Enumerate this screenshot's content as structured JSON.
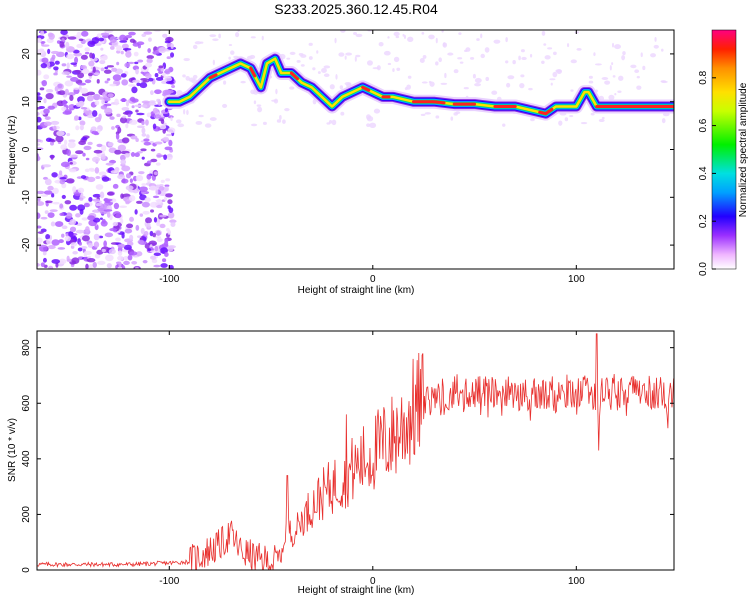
{
  "title": "S233.2025.360.12.45.R04",
  "chart_data": [
    {
      "type": "heatmap",
      "name": "spectrogram",
      "xlabel": "Height of straight line (km)",
      "ylabel": "Frequency (Hz)",
      "xlim": [
        -165,
        148
      ],
      "ylim": [
        -25,
        25
      ],
      "xticks": [
        -100,
        0,
        100
      ],
      "yticks": [
        -20,
        -10,
        0,
        10,
        20
      ],
      "colorbar": {
        "label": "Normalized spectral amplitude",
        "range": [
          0,
          1
        ],
        "ticks": [
          0.0,
          0.2,
          0.4,
          0.6,
          0.8
        ]
      },
      "ridge": {
        "description_free": true,
        "x": [
          -100,
          -95,
          -90,
          -85,
          -80,
          -75,
          -70,
          -65,
          -60,
          -55,
          -52,
          -48,
          -45,
          -40,
          -35,
          -30,
          -25,
          -20,
          -15,
          -10,
          -5,
          0,
          5,
          10,
          20,
          30,
          40,
          50,
          60,
          70,
          80,
          85,
          90,
          95,
          100,
          104,
          106,
          110,
          120,
          130,
          140,
          148
        ],
        "y": [
          10,
          10,
          11,
          13,
          15,
          16,
          17,
          18,
          17,
          13,
          18,
          19,
          16,
          16,
          14,
          13,
          11,
          9,
          11,
          12,
          13,
          12,
          11,
          11,
          10,
          10,
          9.5,
          9.5,
          9,
          9,
          8,
          7.5,
          9,
          9,
          9,
          12,
          12,
          9,
          9,
          9,
          9,
          9
        ]
      }
    },
    {
      "type": "line",
      "name": "snr",
      "xlabel": "Height of straight line (km)",
      "ylabel": "SNR (10 * v/v)",
      "xlim": [
        -165,
        148
      ],
      "ylim": [
        0,
        860
      ],
      "xticks": [
        -100,
        0,
        100
      ],
      "yticks": [
        0,
        200,
        400,
        600,
        800
      ],
      "color": "#e8302e",
      "envelope": {
        "x": [
          -165,
          -140,
          -120,
          -100,
          -90,
          -85,
          -80,
          -75,
          -70,
          -65,
          -60,
          -55,
          -50,
          -45,
          -42,
          -40,
          -35,
          -30,
          -25,
          -20,
          -15,
          -10,
          -5,
          0,
          5,
          10,
          15,
          20,
          25,
          30,
          40,
          50,
          60,
          70,
          80,
          90,
          100,
          105,
          108,
          110,
          112,
          120,
          130,
          140,
          148
        ],
        "y": [
          20,
          20,
          20,
          25,
          30,
          50,
          70,
          90,
          130,
          70,
          50,
          35,
          30,
          40,
          180,
          120,
          180,
          230,
          270,
          300,
          330,
          360,
          390,
          420,
          450,
          480,
          520,
          570,
          600,
          620,
          640,
          640,
          640,
          630,
          630,
          630,
          640,
          640,
          630,
          620,
          630,
          640,
          640,
          640,
          640
        ]
      },
      "peaks": [
        {
          "x": -42,
          "y": 340
        },
        {
          "x": -13,
          "y": 560
        },
        {
          "x": 110,
          "y": 850
        },
        {
          "x": 111,
          "y": 430
        },
        {
          "x": 145,
          "y": 510
        }
      ]
    }
  ]
}
